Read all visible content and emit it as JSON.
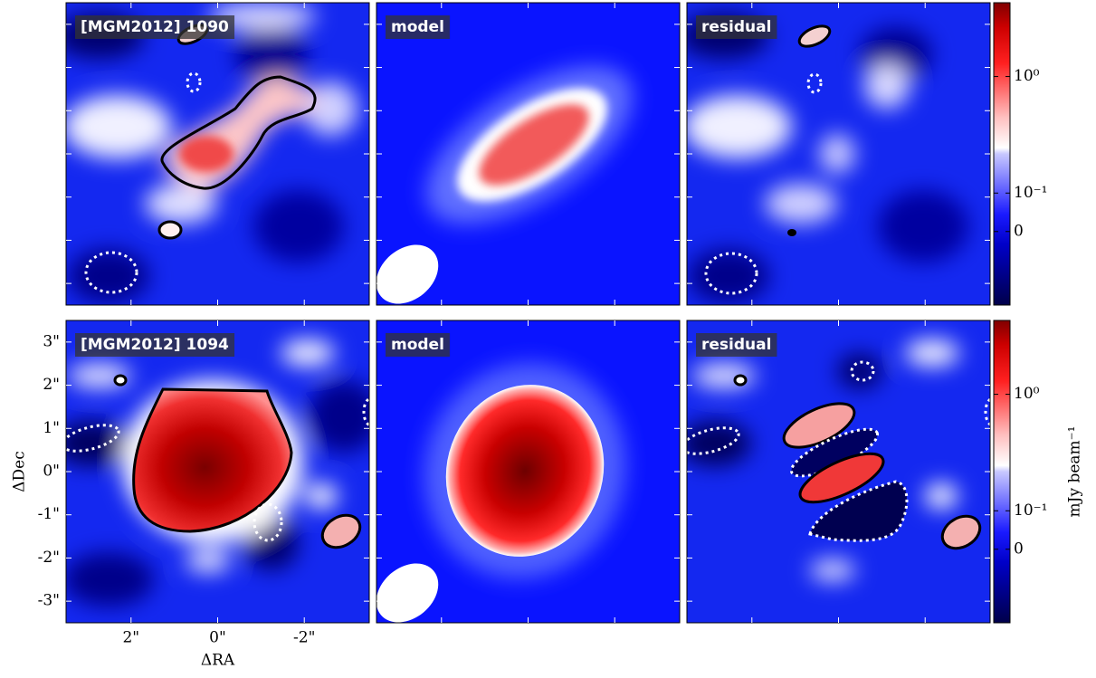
{
  "chart_data": [
    {
      "type": "image",
      "title": "[MGM2012] 1090"
    },
    {
      "type": "image",
      "title": "model"
    },
    {
      "type": "image",
      "title": "residual"
    },
    {
      "type": "image",
      "title": "[MGM2012] 1094",
      "xlabel": "ΔRA",
      "ylabel": "ΔDec",
      "xlim": [
        3.5,
        -3.5
      ],
      "ylim": [
        -3.5,
        3.5
      ],
      "xticks": [
        {
          "value": 2,
          "label": "2\""
        },
        {
          "value": 0,
          "label": "0\""
        },
        {
          "value": -2,
          "label": "-2\""
        }
      ],
      "yticks": [
        {
          "value": 3,
          "label": "3\""
        },
        {
          "value": 2,
          "label": "2\""
        },
        {
          "value": 1,
          "label": "1\""
        },
        {
          "value": 0,
          "label": "0\""
        },
        {
          "value": -1,
          "label": "-1\""
        },
        {
          "value": -2,
          "label": "-2\""
        },
        {
          "value": -3,
          "label": "-3\""
        }
      ]
    },
    {
      "type": "image",
      "title": "model"
    },
    {
      "type": "image",
      "title": "residual"
    },
    {
      "type": "colorbar",
      "scale": "symlog",
      "linthresh": 0.1,
      "clim": [
        -0.2,
        4.3
      ],
      "cticks": [
        {
          "value": 1,
          "label": "10⁰"
        },
        {
          "value": 0.1,
          "label": "10⁻¹"
        },
        0
      ]
    },
    {
      "type": "colorbar",
      "label": "mJy beam⁻¹",
      "scale": "symlog",
      "linthresh": 0.1,
      "clim": [
        -0.2,
        4.3
      ],
      "cticks": [
        {
          "value": 1,
          "label": "10⁰"
        },
        {
          "value": 0.1,
          "label": "10⁻¹"
        },
        0
      ]
    }
  ]
}
